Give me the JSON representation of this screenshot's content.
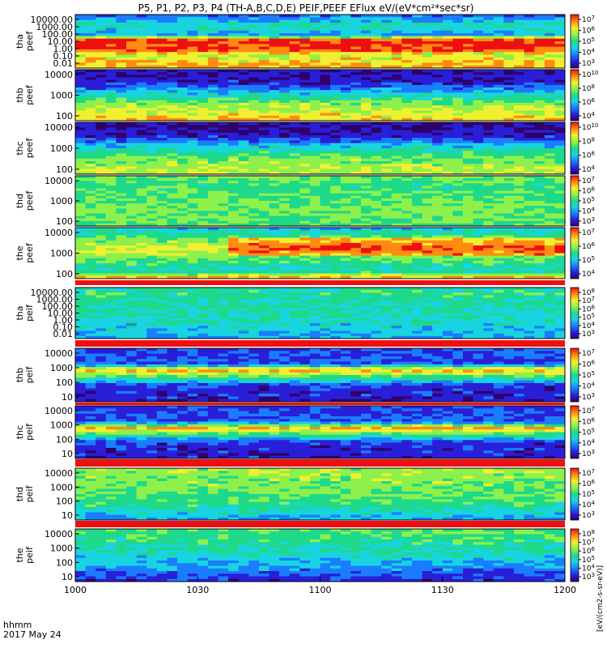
{
  "title": "P5, P1, P2, P3, P4 (TH-A,B,C,D,E) PEIF,PEEF EFlux eV/(eV*cm²*sec*sr)",
  "time_label_line1": "hhmm",
  "time_label_line2": "2017 May 24",
  "colorbar_unit_label": "[eV/(cm2-s-sr-eV)]",
  "chart_data": {
    "type": "heatmap",
    "x_ticks": [
      "1000",
      "1030",
      "1100",
      "1130",
      "1200"
    ],
    "xlim": [
      "10:00",
      "12:00"
    ],
    "panels": [
      {
        "probe": "tha",
        "quantity": "peef",
        "y_ticks": [
          "10000.00",
          "1000.00",
          "100.00",
          "10.00",
          "1.00",
          "0.10",
          "0.01"
        ],
        "cbar_exponents": [
          "3",
          "4",
          "5",
          "6",
          "7"
        ],
        "yscale": "log"
      },
      {
        "probe": "thb",
        "quantity": "peef",
        "y_ticks": [
          "10000",
          "1000",
          "100"
        ],
        "cbar_exponents": [
          "4",
          "6",
          "8",
          "10"
        ],
        "yscale": "log"
      },
      {
        "probe": "thc",
        "quantity": "peef",
        "y_ticks": [
          "10000",
          "1000",
          "100"
        ],
        "cbar_exponents": [
          "4",
          "6",
          "8",
          "10"
        ],
        "yscale": "log"
      },
      {
        "probe": "thd",
        "quantity": "peef",
        "y_ticks": [
          "10000",
          "1000",
          "100"
        ],
        "cbar_exponents": [
          "3",
          "4",
          "5",
          "6",
          "7"
        ],
        "yscale": "log"
      },
      {
        "probe": "the",
        "quantity": "peef",
        "y_ticks": [
          "10000",
          "1000",
          "100"
        ],
        "cbar_exponents": [
          "4",
          "5",
          "6",
          "7"
        ],
        "yscale": "log"
      },
      {
        "probe": "tha",
        "quantity": "peif",
        "y_ticks": [
          "10000.00",
          "1000.00",
          "100.00",
          "10.00",
          "1.00",
          "0.10",
          "0.01"
        ],
        "cbar_exponents": [
          "3",
          "4",
          "5",
          "6",
          "7",
          "8"
        ],
        "yscale": "log"
      },
      {
        "probe": "thb",
        "quantity": "peif",
        "y_ticks": [
          "10000",
          "1000",
          "100",
          "10"
        ],
        "cbar_exponents": [
          "3",
          "4",
          "5",
          "6",
          "7"
        ],
        "yscale": "log"
      },
      {
        "probe": "thc",
        "quantity": "peif",
        "y_ticks": [
          "10000",
          "1000",
          "100",
          "10"
        ],
        "cbar_exponents": [
          "3",
          "4",
          "5",
          "6",
          "7"
        ],
        "yscale": "log"
      },
      {
        "probe": "thd",
        "quantity": "peif",
        "y_ticks": [
          "10000",
          "1000",
          "100",
          "10"
        ],
        "cbar_exponents": [
          "3",
          "4",
          "5",
          "6",
          "7"
        ],
        "yscale": "log"
      },
      {
        "probe": "the",
        "quantity": "peif",
        "y_ticks": [
          "10000",
          "1000",
          "100",
          "10"
        ],
        "cbar_exponents": [
          "3",
          "4",
          "5",
          "6",
          "7",
          "8"
        ],
        "yscale": "log"
      }
    ]
  }
}
